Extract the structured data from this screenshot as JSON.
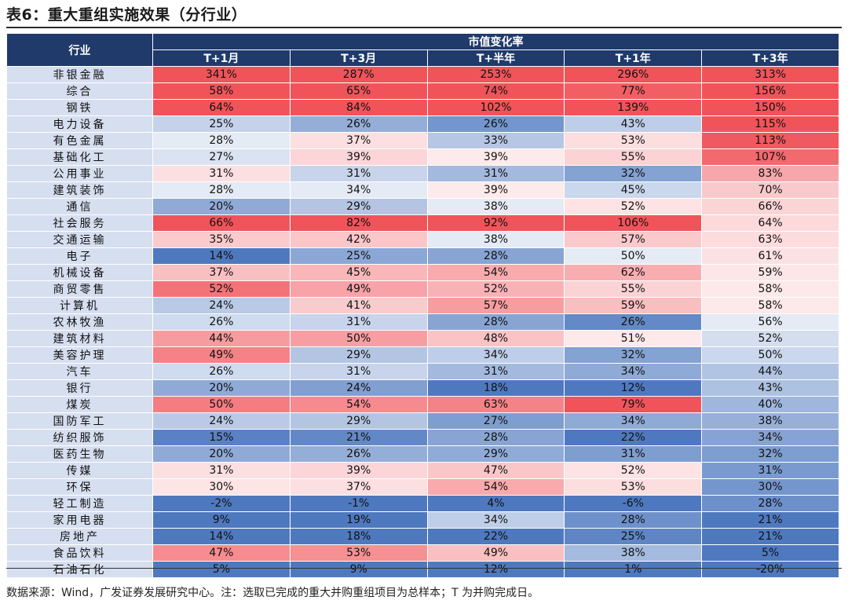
{
  "title": "表6：重大重组实施效果（分行业）",
  "table": {
    "industry_header": "行业",
    "group_header": "市值变化率",
    "period_headers": [
      "T+1月",
      "T+3月",
      "T+半年",
      "T+1年",
      "T+3年"
    ],
    "rows": [
      {
        "industry": "非银金融",
        "values": [
          "341%",
          "287%",
          "253%",
          "296%",
          "313%"
        ]
      },
      {
        "industry": "综合",
        "values": [
          "58%",
          "65%",
          "74%",
          "77%",
          "156%"
        ]
      },
      {
        "industry": "钢铁",
        "values": [
          "64%",
          "84%",
          "102%",
          "139%",
          "150%"
        ]
      },
      {
        "industry": "电力设备",
        "values": [
          "25%",
          "26%",
          "26%",
          "43%",
          "115%"
        ]
      },
      {
        "industry": "有色金属",
        "values": [
          "28%",
          "37%",
          "33%",
          "53%",
          "113%"
        ]
      },
      {
        "industry": "基础化工",
        "values": [
          "27%",
          "39%",
          "39%",
          "55%",
          "107%"
        ]
      },
      {
        "industry": "公用事业",
        "values": [
          "31%",
          "31%",
          "31%",
          "32%",
          "83%"
        ]
      },
      {
        "industry": "建筑装饰",
        "values": [
          "28%",
          "34%",
          "39%",
          "45%",
          "70%"
        ]
      },
      {
        "industry": "通信",
        "values": [
          "20%",
          "29%",
          "38%",
          "52%",
          "66%"
        ]
      },
      {
        "industry": "社会服务",
        "values": [
          "66%",
          "82%",
          "92%",
          "106%",
          "64%"
        ]
      },
      {
        "industry": "交通运输",
        "values": [
          "35%",
          "42%",
          "38%",
          "57%",
          "63%"
        ]
      },
      {
        "industry": "电子",
        "values": [
          "14%",
          "25%",
          "28%",
          "50%",
          "61%"
        ]
      },
      {
        "industry": "机械设备",
        "values": [
          "37%",
          "45%",
          "54%",
          "62%",
          "59%"
        ]
      },
      {
        "industry": "商贸零售",
        "values": [
          "52%",
          "49%",
          "52%",
          "55%",
          "58%"
        ]
      },
      {
        "industry": "计算机",
        "values": [
          "24%",
          "41%",
          "57%",
          "59%",
          "58%"
        ]
      },
      {
        "industry": "农林牧渔",
        "values": [
          "26%",
          "31%",
          "28%",
          "26%",
          "56%"
        ]
      },
      {
        "industry": "建筑材料",
        "values": [
          "44%",
          "50%",
          "48%",
          "51%",
          "52%"
        ]
      },
      {
        "industry": "美容护理",
        "values": [
          "49%",
          "29%",
          "34%",
          "32%",
          "50%"
        ]
      },
      {
        "industry": "汽车",
        "values": [
          "26%",
          "31%",
          "31%",
          "34%",
          "44%"
        ]
      },
      {
        "industry": "银行",
        "values": [
          "20%",
          "24%",
          "18%",
          "12%",
          "43%"
        ]
      },
      {
        "industry": "煤炭",
        "values": [
          "50%",
          "54%",
          "63%",
          "79%",
          "40%"
        ]
      },
      {
        "industry": "国防军工",
        "values": [
          "24%",
          "29%",
          "27%",
          "34%",
          "38%"
        ]
      },
      {
        "industry": "纺织服饰",
        "values": [
          "15%",
          "21%",
          "28%",
          "22%",
          "34%"
        ]
      },
      {
        "industry": "医药生物",
        "values": [
          "20%",
          "26%",
          "29%",
          "31%",
          "32%"
        ]
      },
      {
        "industry": "传媒",
        "values": [
          "31%",
          "39%",
          "47%",
          "52%",
          "31%"
        ]
      },
      {
        "industry": "环保",
        "values": [
          "30%",
          "37%",
          "54%",
          "53%",
          "30%"
        ]
      },
      {
        "industry": "轻工制造",
        "values": [
          "-2%",
          "-1%",
          "4%",
          "-6%",
          "28%"
        ]
      },
      {
        "industry": "家用电器",
        "values": [
          "9%",
          "19%",
          "34%",
          "28%",
          "21%"
        ]
      },
      {
        "industry": "房地产",
        "values": [
          "14%",
          "18%",
          "22%",
          "25%",
          "21%"
        ]
      },
      {
        "industry": "食品饮料",
        "values": [
          "47%",
          "53%",
          "49%",
          "38%",
          "5%"
        ]
      },
      {
        "industry": "石油石化",
        "values": [
          "5%",
          "9%",
          "12%",
          "1%",
          "-20%"
        ]
      }
    ]
  },
  "source_note": "数据来源：Wind，广发证券发展研究中心。注：选取已完成的重大并购重组项目为总样本；T 为并购完成日。",
  "colors": {
    "header_bg": "#1f3a6b",
    "industry_bg": "#d6dff0",
    "heat_low": "#4f79bf",
    "heat_mid": "#ffffff",
    "heat_high": "#f0545a"
  }
}
